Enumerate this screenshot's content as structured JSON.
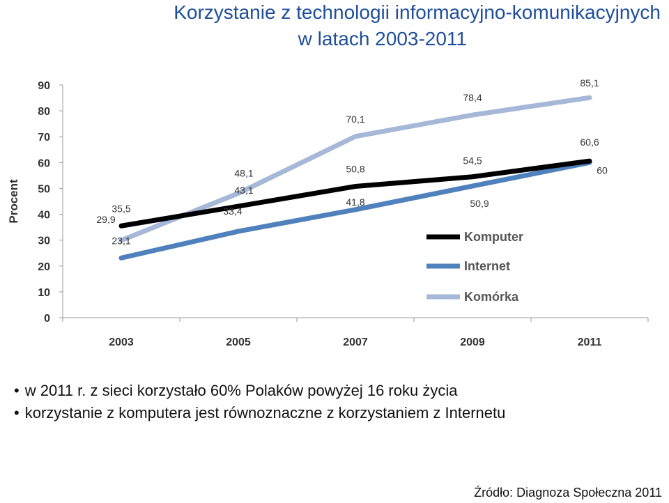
{
  "title_line1": "Korzystanie z technologii informacyjno-komunikacyjnych",
  "title_line2": "w latach 2003-2011",
  "bullets": [
    "w 2011 r. z sieci korzystało 60% Polaków powyżej 16 roku życia",
    "korzystanie z komputera jest równoznaczne z korzystaniem z Internetu"
  ],
  "source": "Źródło: Diagnoza Społeczna 2011",
  "chart_data": {
    "type": "line",
    "title": "",
    "xlabel": "",
    "ylabel": "Procent",
    "categories": [
      "2003",
      "2005",
      "2007",
      "2009",
      "2011"
    ],
    "yticks": [
      "0",
      "10",
      "20",
      "30",
      "40",
      "50",
      "60",
      "70",
      "80",
      "90"
    ],
    "ylim": [
      0,
      90
    ],
    "grid": false,
    "legend_position": "right",
    "series": [
      {
        "name": "Komputer",
        "color": "#000000",
        "values": [
          35.5,
          43.1,
          50.8,
          54.5,
          60.6
        ],
        "labels": [
          "35,5",
          "43,1",
          "50,8",
          "54,5",
          "60,6"
        ]
      },
      {
        "name": "Internet",
        "color": "#4f81bd",
        "values": [
          23.1,
          33.4,
          41.8,
          50.9,
          60
        ],
        "labels": [
          "23,1",
          "33,4",
          "41,8",
          "50,9",
          "60"
        ]
      },
      {
        "name": "Komórka",
        "color": "#a6b8d8",
        "values": [
          29.9,
          48.1,
          70.1,
          78.4,
          85.1
        ],
        "labels": [
          "29,9",
          "48,1",
          "70,1",
          "78,4",
          "85,1"
        ]
      }
    ]
  }
}
